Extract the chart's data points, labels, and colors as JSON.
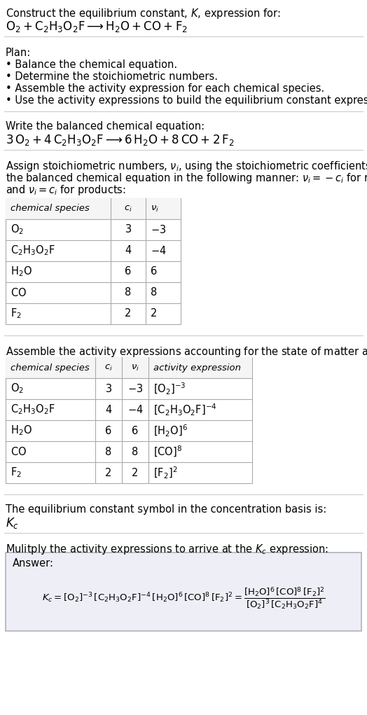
{
  "bg_color": "#ffffff",
  "text_color": "#000000",
  "title_line1": "Construct the equilibrium constant, $K$, expression for:",
  "title_line2": "$\\mathrm{O_2 + C_2H_3O_2F \\longrightarrow H_2O + CO + F_2}$",
  "plan_header": "Plan:",
  "plan_items": [
    "• Balance the chemical equation.",
    "• Determine the stoichiometric numbers.",
    "• Assemble the activity expression for each chemical species.",
    "• Use the activity expressions to build the equilibrium constant expression."
  ],
  "balanced_header": "Write the balanced chemical equation:",
  "balanced_eq": "$\\mathrm{3\\,O_2 + 4\\,C_2H_3O_2F \\longrightarrow 6\\,H_2O + 8\\,CO + 2\\,F_2}$",
  "stoich_header_parts": [
    "Assign stoichiometric numbers, $\\nu_i$, using the stoichiometric coefficients, $c_i$, from",
    "the balanced chemical equation in the following manner: $\\nu_i = -c_i$ for reactants",
    "and $\\nu_i = c_i$ for products:"
  ],
  "table1_headers": [
    "chemical species",
    "$c_i$",
    "$\\nu_i$"
  ],
  "table1_data": [
    [
      "$\\mathrm{O_2}$",
      "3",
      "$-3$"
    ],
    [
      "$\\mathrm{C_2H_3O_2F}$",
      "4",
      "$-4$"
    ],
    [
      "$\\mathrm{H_2O}$",
      "6",
      "6"
    ],
    [
      "$\\mathrm{CO}$",
      "8",
      "8"
    ],
    [
      "$\\mathrm{F_2}$",
      "2",
      "2"
    ]
  ],
  "activity_header": "Assemble the activity expressions accounting for the state of matter and $\\nu_i$:",
  "table2_headers": [
    "chemical species",
    "$c_i$",
    "$\\nu_i$",
    "activity expression"
  ],
  "table2_data": [
    [
      "$\\mathrm{O_2}$",
      "3",
      "$-3$",
      "$[\\mathrm{O_2}]^{-3}$"
    ],
    [
      "$\\mathrm{C_2H_3O_2F}$",
      "4",
      "$-4$",
      "$[\\mathrm{C_2H_3O_2F}]^{-4}$"
    ],
    [
      "$\\mathrm{H_2O}$",
      "6",
      "6",
      "$[\\mathrm{H_2O}]^{6}$"
    ],
    [
      "$\\mathrm{CO}$",
      "8",
      "8",
      "$[\\mathrm{CO}]^{8}$"
    ],
    [
      "$\\mathrm{F_2}$",
      "2",
      "2",
      "$[\\mathrm{F_2}]^{2}$"
    ]
  ],
  "kc_header": "The equilibrium constant symbol in the concentration basis is:",
  "kc_symbol": "$K_c$",
  "multiply_header": "Mulitply the activity expressions to arrive at the $K_c$ expression:",
  "answer_label": "Answer:",
  "answer_eq": "$K_c = [\\mathrm{O_2}]^{-3}\\,[\\mathrm{C_2H_3O_2F}]^{-4}\\,[\\mathrm{H_2O}]^{6}\\,[\\mathrm{CO}]^{8}\\,[\\mathrm{F_2}]^{2} = \\dfrac{[\\mathrm{H_2O}]^{6}\\,[\\mathrm{CO}]^{8}\\,[\\mathrm{F_2}]^{2}}{[\\mathrm{O_2}]^{3}\\,[\\mathrm{C_2H_3O_2F}]^{4}}$",
  "answer_box_color": "#eeeef6",
  "answer_box_border": "#b0b0c0",
  "divider_color": "#cccccc",
  "table_border_color": "#aaaaaa",
  "table_header_bg": "#f5f5f5"
}
